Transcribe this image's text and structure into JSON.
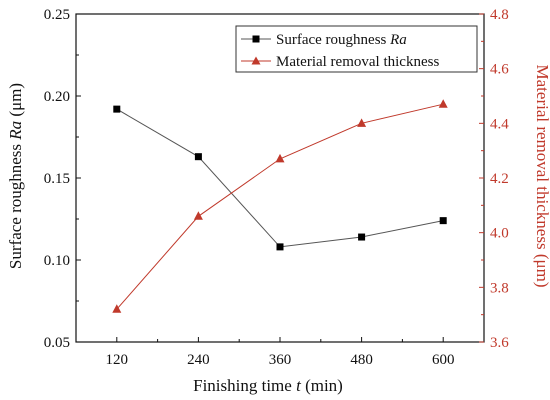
{
  "chart_data": {
    "type": "line",
    "x": [
      120,
      240,
      360,
      480,
      600
    ],
    "xlabel_prefix": "Finishing time ",
    "xlabel_var": "t",
    "xlabel_suffix": " (min)",
    "ylabel_prefix": "Surface roughness ",
    "ylabel_var": "Ra",
    "ylabel_suffix": " (μm)",
    "y2label": "Material removal thickness (μm)",
    "xlim": [
      60,
      660
    ],
    "ylim": [
      0.05,
      0.25
    ],
    "y2lim": [
      3.6,
      4.8
    ],
    "xticks": [
      "120",
      "240",
      "360",
      "480",
      "600"
    ],
    "yticks": [
      "0.05",
      "0.10",
      "0.15",
      "0.20",
      "0.25"
    ],
    "y2ticks": [
      "3.6",
      "3.8",
      "4.0",
      "4.2",
      "4.4",
      "4.6",
      "4.8"
    ],
    "legend_position": "top-right",
    "series": [
      {
        "name_prefix": "Surface roughness ",
        "name_var": "Ra",
        "axis": "left",
        "marker": "square",
        "color": "#000000",
        "line_color": "#555555",
        "values": [
          0.192,
          0.163,
          0.108,
          0.114,
          0.124
        ]
      },
      {
        "name": "Material removal thickness",
        "axis": "right",
        "marker": "triangle",
        "color": "#c0392b",
        "line_color": "#c0392b",
        "values": [
          3.72,
          4.06,
          4.27,
          4.4,
          4.47
        ]
      }
    ]
  }
}
